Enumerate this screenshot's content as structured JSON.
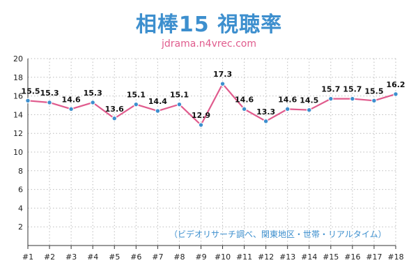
{
  "chart_data": {
    "type": "line",
    "title": "相棒15 視聴率",
    "subtitle": "jdrama.n4vrec.com",
    "note": "（ビデオリサーチ調べ、関東地区・世帯・リアルタイム）",
    "categories": [
      "#1",
      "#2",
      "#3",
      "#4",
      "#5",
      "#6",
      "#7",
      "#8",
      "#9",
      "#10",
      "#11",
      "#12",
      "#13",
      "#14",
      "#15",
      "#16",
      "#17",
      "#18"
    ],
    "series": [
      {
        "values": [
          15.5,
          15.3,
          14.6,
          15.3,
          13.6,
          15.1,
          14.4,
          15.1,
          12.9,
          17.3,
          14.6,
          13.3,
          14.6,
          14.5,
          15.7,
          15.7,
          15.5,
          16.2
        ]
      }
    ],
    "ylim": [
      0,
      20
    ],
    "yticks": [
      2,
      4,
      6,
      8,
      10,
      12,
      14,
      16,
      18,
      20
    ],
    "grid": true,
    "colors": {
      "line": "#e05b8d",
      "marker": "#3d8fce",
      "title": "#3d8fce",
      "subtitle": "#e05b8d"
    }
  }
}
